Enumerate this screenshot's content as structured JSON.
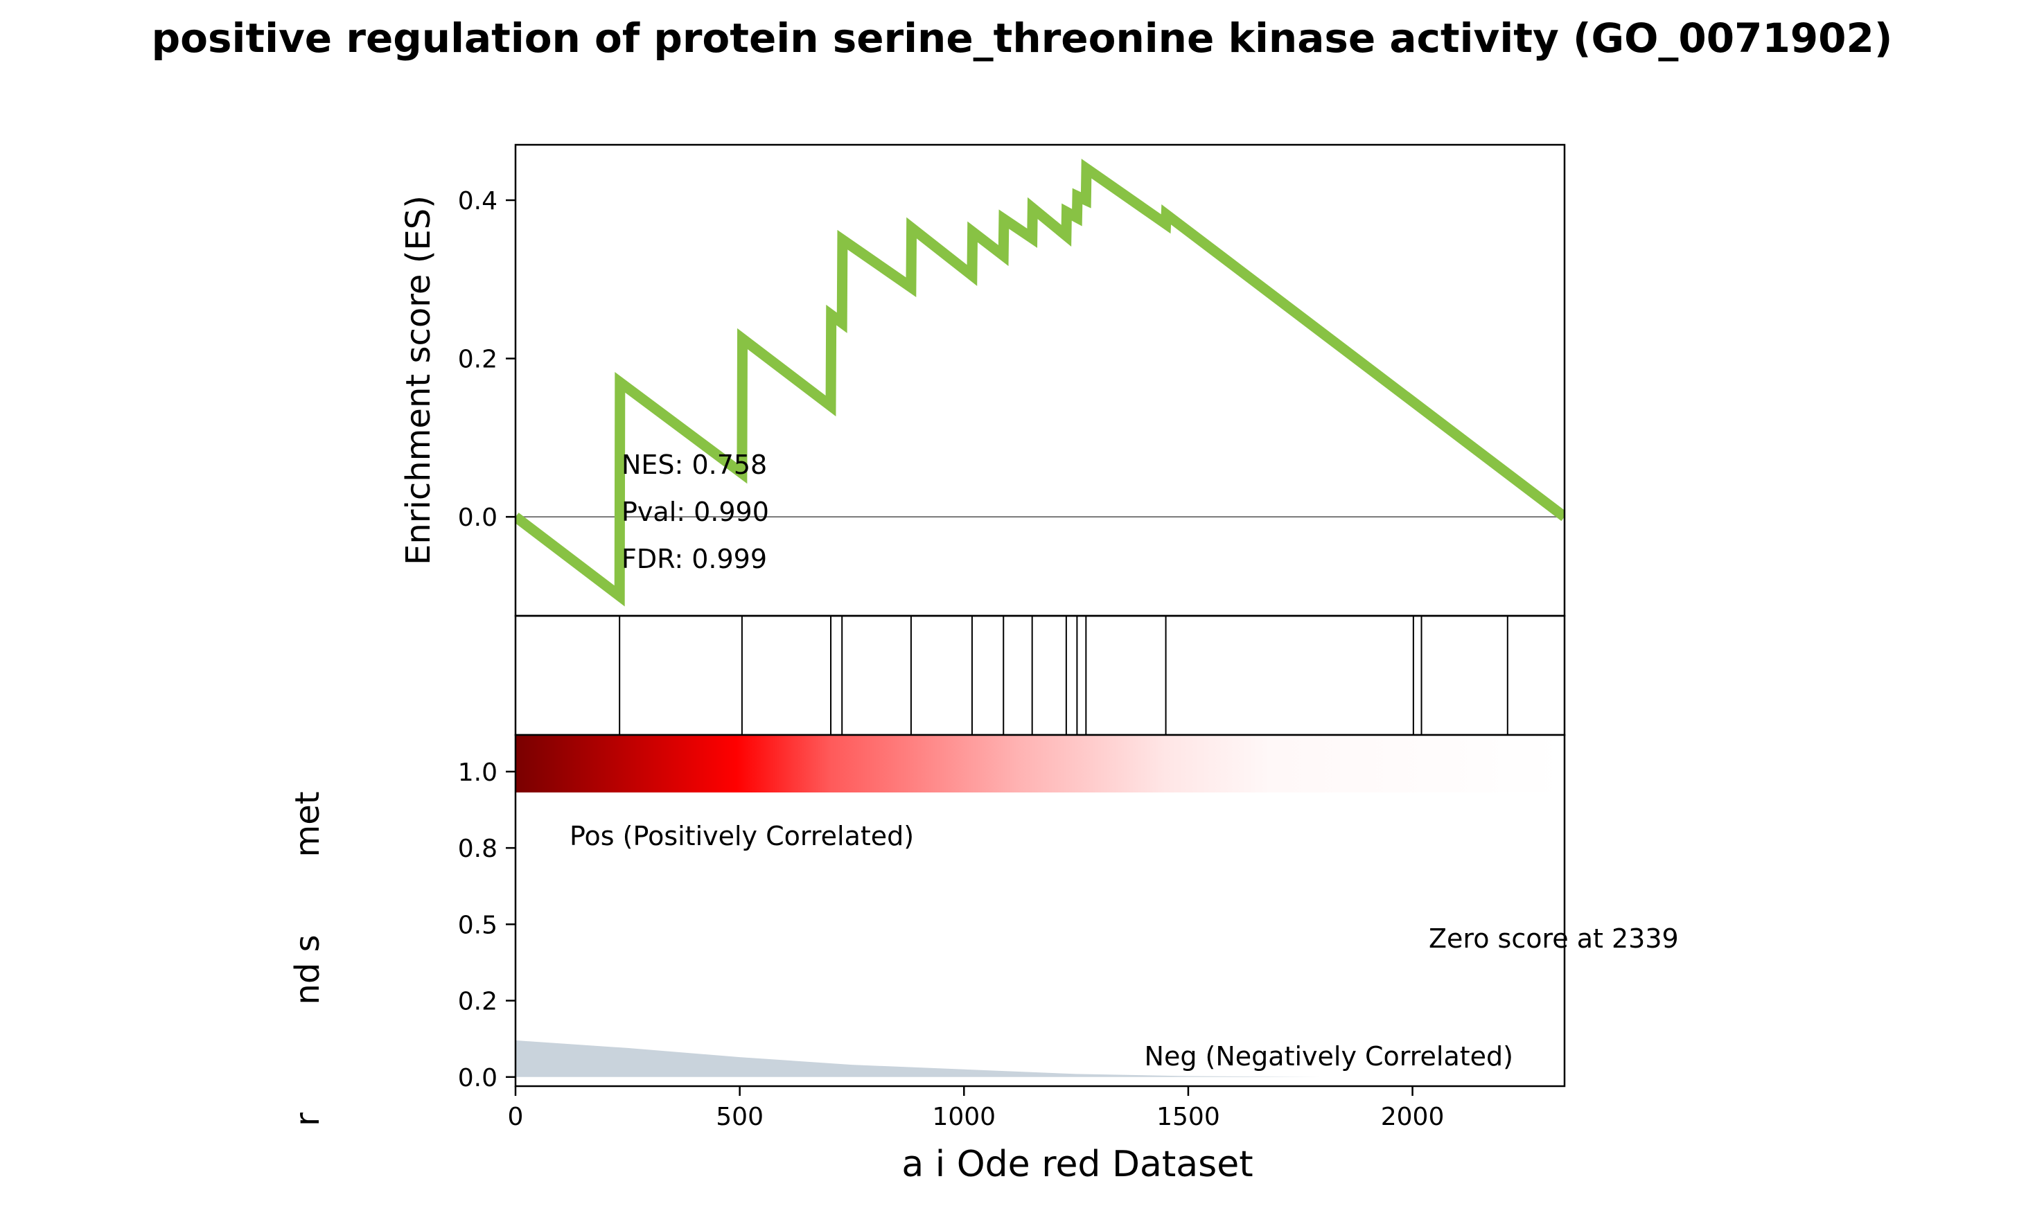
{
  "chart_data": [
    {
      "type": "line",
      "panel": "enrichment",
      "title": "positive regulation of protein serine_threonine kinase activity (GO_0071902)",
      "ylabel": "Enrichment score (ES)",
      "xlim": [
        0,
        2339
      ],
      "ylim": [
        -0.125,
        0.47
      ],
      "y_ticks": [
        0.0,
        0.2,
        0.4
      ],
      "y_tick_labels": [
        "0.0",
        "0.2",
        "0.4"
      ],
      "series": [
        {
          "color": "#88c244",
          "points": [
            [
              0,
              0.0
            ],
            [
              232,
              -0.1
            ],
            [
              233,
              0.17
            ],
            [
              505,
              0.055
            ],
            [
              506,
              0.225
            ],
            [
              703,
              0.14
            ],
            [
              704,
              0.255
            ],
            [
              728,
              0.245
            ],
            [
              729,
              0.35
            ],
            [
              882,
              0.29
            ],
            [
              883,
              0.365
            ],
            [
              1018,
              0.305
            ],
            [
              1019,
              0.36
            ],
            [
              1088,
              0.33
            ],
            [
              1089,
              0.376
            ],
            [
              1152,
              0.352
            ],
            [
              1153,
              0.39
            ],
            [
              1228,
              0.355
            ],
            [
              1229,
              0.385
            ],
            [
              1252,
              0.378
            ],
            [
              1253,
              0.405
            ],
            [
              1272,
              0.4
            ],
            [
              1273,
              0.44
            ],
            [
              1450,
              0.37
            ],
            [
              1451,
              0.382
            ],
            [
              2339,
              0.0
            ]
          ]
        }
      ],
      "annotations": [
        "NES: 0.758",
        "Pval: 0.990",
        "FDR: 0.999"
      ]
    },
    {
      "type": "hits",
      "panel": "hits",
      "xlim": [
        0,
        2339
      ],
      "hit_positions": [
        232,
        505,
        703,
        728,
        882,
        1018,
        1088,
        1152,
        1228,
        1252,
        1272,
        1450,
        2002,
        2020,
        2212
      ]
    },
    {
      "type": "area",
      "panel": "ranking",
      "xlabel": "a i Ode red Dataset",
      "ylabel": "r nd s met",
      "ylabel_fragments": [
        "r",
        "nd s",
        "met"
      ],
      "xlim": [
        0,
        2339
      ],
      "ylim": [
        -0.03,
        1.12
      ],
      "x_ticks": [
        0,
        500,
        1000,
        1500,
        2000
      ],
      "x_tick_labels": [
        "0",
        "500",
        "1000",
        "1500",
        "2000"
      ],
      "y_ticks": [
        0.0,
        0.25,
        0.5,
        0.75,
        1.0
      ],
      "y_tick_labels": [
        "0.0",
        "0.2",
        "0.5",
        "0.8",
        "1.0"
      ],
      "area": {
        "color": "#c9d3dc",
        "points": [
          [
            0,
            0.12
          ],
          [
            250,
            0.095
          ],
          [
            500,
            0.065
          ],
          [
            750,
            0.04
          ],
          [
            1000,
            0.025
          ],
          [
            1250,
            0.01
          ],
          [
            1500,
            0.003
          ],
          [
            1800,
            0.0
          ],
          [
            2339,
            0.0
          ]
        ]
      },
      "colorbar": "red-to-white gradient",
      "annotations": {
        "pos": "Pos (Positively Correlated)",
        "neg": "Neg (Negatively Correlated)",
        "zero": "Zero score at 2339"
      },
      "annotation_colors": {
        "pos": "#ff0000",
        "neg": "#0000ff"
      }
    }
  ]
}
